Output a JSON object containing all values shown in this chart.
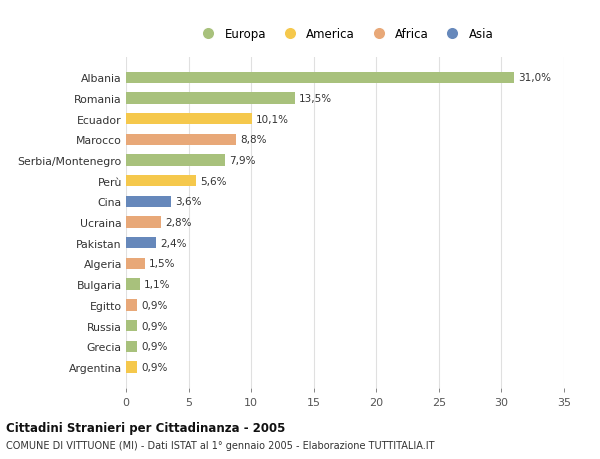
{
  "countries": [
    "Albania",
    "Romania",
    "Ecuador",
    "Marocco",
    "Serbia/Montenegro",
    "Perù",
    "Cina",
    "Ucraina",
    "Pakistan",
    "Algeria",
    "Bulgaria",
    "Egitto",
    "Russia",
    "Grecia",
    "Argentina"
  ],
  "values": [
    31.0,
    13.5,
    10.1,
    8.8,
    7.9,
    5.6,
    3.6,
    2.8,
    2.4,
    1.5,
    1.1,
    0.9,
    0.9,
    0.9,
    0.9
  ],
  "continents": [
    "Europa",
    "Europa",
    "America",
    "Africa",
    "Europa",
    "America",
    "Asia",
    "Africa",
    "Asia",
    "Africa",
    "Europa",
    "Africa",
    "Europa",
    "Europa",
    "America"
  ],
  "continent_colors": {
    "Europa": "#a8c17c",
    "America": "#f5c84c",
    "Africa": "#e8a878",
    "Asia": "#6688bb"
  },
  "legend_order": [
    "Europa",
    "America",
    "Africa",
    "Asia"
  ],
  "title": "Cittadini Stranieri per Cittadinanza - 2005",
  "subtitle": "COMUNE DI VITTUONE (MI) - Dati ISTAT al 1° gennaio 2005 - Elaborazione TUTTITALIA.IT",
  "xlim": [
    0,
    35
  ],
  "xticks": [
    0,
    5,
    10,
    15,
    20,
    25,
    30,
    35
  ],
  "bg_color": "#ffffff",
  "plot_bg_color": "#ffffff",
  "grid_color": "#e0e0e0"
}
